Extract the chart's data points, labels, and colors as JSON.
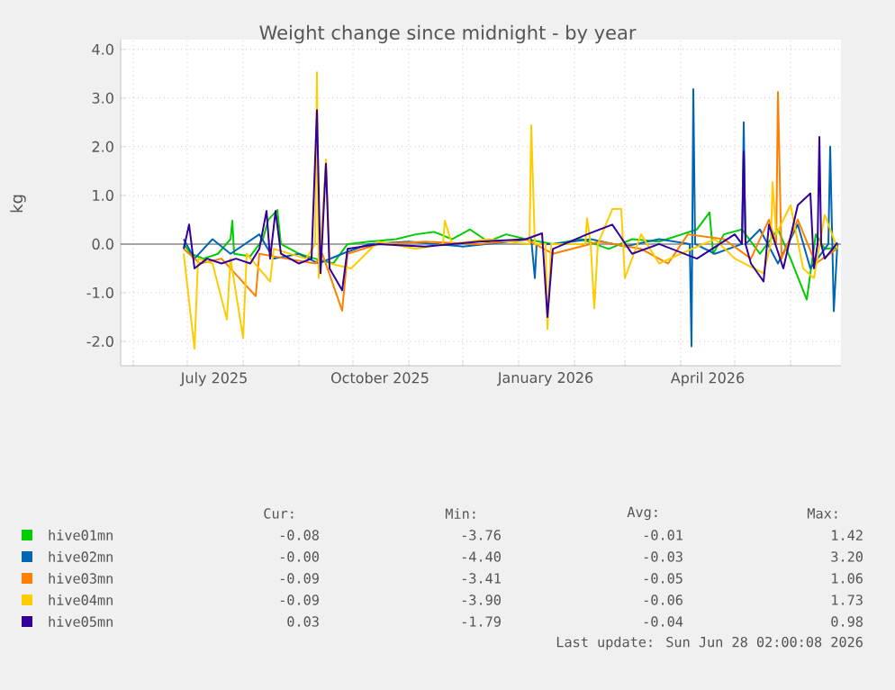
{
  "chart_data": {
    "type": "line",
    "title": "Weight change since midnight - by year",
    "ylabel": "kg",
    "xlim": [
      "2025-05-25",
      "2026-06-29"
    ],
    "ylim": [
      -2.5,
      4.2
    ],
    "xticks": [
      {
        "value": "2025-06-01",
        "label": null
      },
      {
        "value": "2025-07-01",
        "label": null
      },
      {
        "value": "2025-08-01",
        "label": null
      },
      {
        "value": "2025-09-01",
        "label": null
      },
      {
        "value": "2025-10-01",
        "label": null
      },
      {
        "value": "2025-11-01",
        "label": null
      },
      {
        "value": "2025-12-01",
        "label": null
      },
      {
        "value": "2026-01-01",
        "label": null
      },
      {
        "value": "2026-02-01",
        "label": null
      },
      {
        "value": "2026-03-01",
        "label": null
      },
      {
        "value": "2026-04-01",
        "label": null
      },
      {
        "value": "2026-05-01",
        "label": null
      },
      {
        "value": "2026-06-01",
        "label": null
      },
      {
        "value": "2025-07-16",
        "label": "July 2025"
      },
      {
        "value": "2025-10-16",
        "label": "October 2025"
      },
      {
        "value": "2026-01-16",
        "label": "January 2026"
      },
      {
        "value": "2026-04-16",
        "label": "April 2026"
      }
    ],
    "yticks": [
      {
        "value": -2,
        "label": "-2.0"
      },
      {
        "value": -1,
        "label": "-1.0"
      },
      {
        "value": 0,
        "label": "0.0"
      },
      {
        "value": 1,
        "label": "1.0"
      },
      {
        "value": 2,
        "label": "2.0"
      },
      {
        "value": 3,
        "label": "3.0"
      },
      {
        "value": 4,
        "label": "4.0"
      }
    ],
    "grid": true,
    "legend": "bottom",
    "line_style": "solid",
    "ref_lines": [
      {
        "axis": "y",
        "value": 0,
        "color": "#888888"
      }
    ],
    "series": [
      {
        "name": "hive01mn",
        "color": "#00cc00",
        "x": [
          "2025-06-29",
          "2025-07-03",
          "2025-07-10",
          "2025-07-18",
          "2025-07-25",
          "2025-07-26",
          "2025-07-27",
          "2025-08-05",
          "2025-08-12",
          "2025-08-15",
          "2025-08-20",
          "2025-08-22",
          "2025-09-01",
          "2025-09-10",
          "2025-09-20",
          "2025-09-28",
          "2025-10-10",
          "2025-10-25",
          "2025-11-05",
          "2025-11-15",
          "2025-11-25",
          "2025-12-05",
          "2025-12-15",
          "2025-12-25",
          "2026-01-05",
          "2026-01-20",
          "2026-02-05",
          "2026-02-20",
          "2026-03-05",
          "2026-03-20",
          "2026-04-10",
          "2026-04-17",
          "2026-04-19",
          "2026-04-25",
          "2026-05-05",
          "2026-05-15",
          "2026-05-25",
          "2026-06-01",
          "2026-06-10",
          "2026-06-15",
          "2026-06-20",
          "2026-06-27"
        ],
        "values": [
          0,
          -0.2,
          -0.3,
          -0.2,
          0.1,
          0.48,
          -0.2,
          -0.25,
          0.1,
          0.5,
          0.7,
          0,
          -0.2,
          -0.3,
          -0.4,
          0,
          0.05,
          0.1,
          0.2,
          0.25,
          0.1,
          0.3,
          0.05,
          0.2,
          0.1,
          0,
          0.1,
          -0.1,
          0.1,
          0.05,
          0.3,
          0.65,
          -0.2,
          0.2,
          0.3,
          -0.2,
          0.3,
          -0.3,
          -1.14,
          0.2,
          -0.1,
          -0.08
        ]
      },
      {
        "name": "hive02mn",
        "color": "#0066b3",
        "x": [
          "2025-06-29",
          "2025-07-05",
          "2025-07-15",
          "2025-07-25",
          "2025-08-10",
          "2025-08-18",
          "2025-09-01",
          "2025-09-12",
          "2025-09-25",
          "2025-10-10",
          "2025-11-01",
          "2025-12-01",
          "2026-01-08",
          "2026-01-10",
          "2026-01-11",
          "2026-01-20",
          "2026-02-10",
          "2026-03-01",
          "2026-03-20",
          "2026-04-06",
          "2026-04-07",
          "2026-04-08",
          "2026-04-09",
          "2026-04-20",
          "2026-05-05",
          "2026-05-06",
          "2026-05-07",
          "2026-05-15",
          "2026-05-25",
          "2026-06-05",
          "2026-06-12",
          "2026-06-22",
          "2026-06-23",
          "2026-06-25",
          "2026-06-27"
        ],
        "values": [
          0.1,
          -0.3,
          0.1,
          -0.2,
          0.2,
          -0.3,
          -0.2,
          -0.4,
          -0.2,
          0,
          0.05,
          -0.05,
          0.1,
          -0.7,
          0,
          0,
          0.1,
          -0.05,
          0.1,
          0,
          -2.1,
          3.18,
          0,
          -0.2,
          0,
          2.5,
          0,
          0.3,
          -0.4,
          0.4,
          -0.5,
          0,
          2.0,
          -1.38,
          0
        ]
      },
      {
        "name": "hive03mn",
        "color": "#ff8000",
        "x": [
          "2025-06-29",
          "2025-07-08",
          "2025-07-20",
          "2025-08-08",
          "2025-08-10",
          "2025-08-25",
          "2025-09-10",
          "2025-09-14",
          "2025-09-25",
          "2025-09-28",
          "2025-10-15",
          "2025-11-10",
          "2025-12-10",
          "2026-01-05",
          "2026-01-20",
          "2026-02-15",
          "2026-03-10",
          "2026-03-25",
          "2026-04-05",
          "2026-04-25",
          "2026-05-10",
          "2026-05-20",
          "2026-05-24",
          "2026-05-25",
          "2026-05-27",
          "2026-06-05",
          "2026-06-15",
          "2026-06-27"
        ],
        "values": [
          -0.1,
          -0.4,
          -0.3,
          -1.07,
          -0.2,
          -0.3,
          -0.4,
          -0.2,
          -1.37,
          -0.2,
          0,
          0.05,
          0,
          0.1,
          -0.2,
          0.05,
          -0.1,
          -0.4,
          0.2,
          0.1,
          -0.3,
          0.5,
          0,
          3.12,
          -0.3,
          0.5,
          -0.4,
          -0.09
        ]
      },
      {
        "name": "hive04mn",
        "color": "#ffcc00",
        "x": [
          "2025-06-29",
          "2025-07-05",
          "2025-07-07",
          "2025-07-15",
          "2025-07-23",
          "2025-07-25",
          "2025-08-01",
          "2025-08-03",
          "2025-08-16",
          "2025-08-18",
          "2025-09-05",
          "2025-09-10",
          "2025-09-11",
          "2025-09-12",
          "2025-09-16",
          "2025-09-18",
          "2025-09-30",
          "2025-10-15",
          "2025-11-05",
          "2025-11-20",
          "2025-11-21",
          "2025-11-25",
          "2025-12-15",
          "2026-01-07",
          "2026-01-08",
          "2026-01-10",
          "2026-01-16",
          "2026-01-17",
          "2026-01-19",
          "2026-02-07",
          "2026-02-08",
          "2026-02-10",
          "2026-02-12",
          "2026-02-14",
          "2026-02-22",
          "2026-02-27",
          "2026-03-01",
          "2026-03-10",
          "2026-03-20",
          "2026-04-01",
          "2026-04-20",
          "2026-05-01",
          "2026-05-17",
          "2026-05-21",
          "2026-05-22",
          "2026-05-24",
          "2026-06-01",
          "2026-06-08",
          "2026-06-14",
          "2026-06-20",
          "2026-06-27"
        ],
        "values": [
          -0.2,
          -2.15,
          -0.3,
          -0.4,
          -1.55,
          -0.3,
          -1.93,
          -0.2,
          -0.77,
          -0.1,
          -0.3,
          0,
          3.53,
          -0.7,
          1.74,
          -0.4,
          -0.5,
          0.05,
          -0.1,
          0,
          0.48,
          0,
          0.1,
          0,
          2.44,
          0,
          0,
          -1.75,
          0,
          0,
          0.53,
          0,
          -1.32,
          0,
          0.72,
          0.72,
          -0.7,
          0.2,
          -0.4,
          -0.2,
          0.1,
          -0.3,
          -0.6,
          0,
          1.27,
          0.2,
          0.8,
          -0.5,
          -0.7,
          0.6,
          -0.09
        ]
      },
      {
        "name": "hive05mn",
        "color": "#330099",
        "x": [
          "2025-06-29",
          "2025-07-02",
          "2025-07-05",
          "2025-07-12",
          "2025-07-20",
          "2025-07-28",
          "2025-08-05",
          "2025-08-10",
          "2025-08-14",
          "2025-08-16",
          "2025-08-19",
          "2025-08-22",
          "2025-09-01",
          "2025-09-08",
          "2025-09-11",
          "2025-09-13",
          "2025-09-16",
          "2025-09-18",
          "2025-09-25",
          "2025-09-28",
          "2025-10-15",
          "2025-11-10",
          "2025-12-10",
          "2026-01-05",
          "2026-01-14",
          "2026-01-17",
          "2026-01-20",
          "2026-02-08",
          "2026-02-22",
          "2026-03-05",
          "2026-03-20",
          "2026-04-10",
          "2026-05-01",
          "2026-05-05",
          "2026-05-06",
          "2026-05-07",
          "2026-05-10",
          "2026-05-17",
          "2026-05-20",
          "2026-05-28",
          "2026-06-05",
          "2026-06-12",
          "2026-06-14",
          "2026-06-16",
          "2026-06-17",
          "2026-06-18",
          "2026-06-20",
          "2026-06-27"
        ],
        "values": [
          -0.1,
          0.4,
          -0.5,
          -0.3,
          -0.4,
          -0.3,
          -0.4,
          -0.1,
          0.68,
          -0.3,
          0.68,
          -0.2,
          -0.4,
          -0.3,
          2.75,
          -0.6,
          1.65,
          -0.5,
          -0.95,
          -0.1,
          0,
          -0.05,
          0.05,
          0.1,
          0.22,
          -1.5,
          -0.1,
          0.2,
          0.4,
          -0.2,
          0,
          -0.3,
          0.2,
          0,
          1.9,
          0,
          -0.4,
          -0.77,
          0.4,
          -0.5,
          0.8,
          1.04,
          -0.5,
          0,
          2.2,
          0,
          -0.3,
          0.03
        ]
      }
    ],
    "annotations": [
      "Cur:",
      "Min:",
      "Avg:",
      "Max:",
      "-0.08",
      "-3.76",
      "-0.01",
      "1.42",
      "-0.00",
      "-4.40",
      "-0.03",
      "3.20",
      "-0.09",
      "-3.41",
      "-0.05",
      "1.06",
      "-0.09",
      "-3.90",
      "-0.06",
      "1.73",
      "0.03",
      "-1.79",
      "-0.04",
      "0.98",
      "Last update: Sun Jun 28 02:00:08 2026"
    ]
  }
}
